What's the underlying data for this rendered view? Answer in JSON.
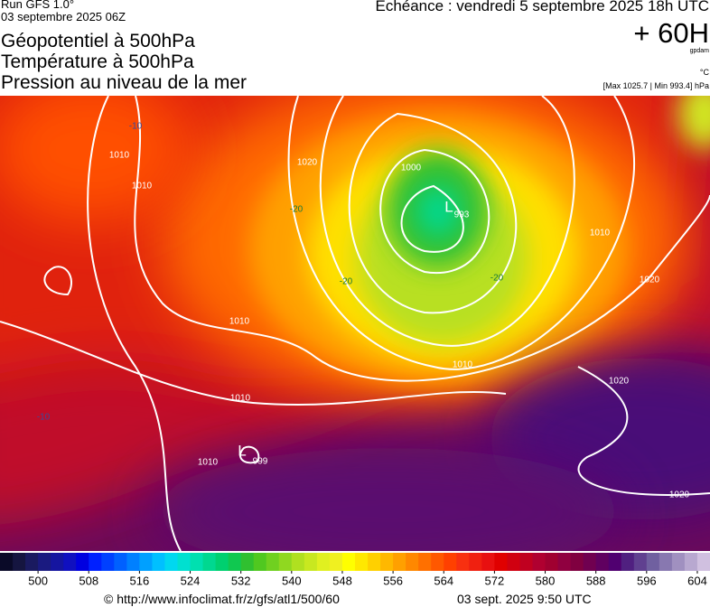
{
  "header": {
    "run": "Run GFS 1.0°",
    "run_date": "03 septembre 2025 06Z",
    "titles": [
      "Géopotentiel à 500hPa",
      "Température à 500hPa",
      "Pression au niveau de la mer"
    ],
    "valid": "Echéance : vendredi 5 septembre 2025 18h UTC",
    "lead": "+ 60H",
    "unit_geo": "gpdam",
    "unit_temp": "°C",
    "pressure_range": "[Max 1025.7 | Min 993.4] hPa"
  },
  "map": {
    "contour_labels": [
      "1010",
      "1010",
      "1020",
      "1000",
      "993",
      "L",
      "1010",
      "1020",
      "1010",
      "1010",
      "1010",
      "1020",
      "999",
      "L",
      "1010",
      "1020",
      "-20",
      "-20",
      "-20",
      "-10",
      "-10"
    ]
  },
  "colorbar": {
    "xlim": [
      494,
      606
    ],
    "colors": [
      "#0a0a28",
      "#151540",
      "#1a1a60",
      "#1a1a80",
      "#1515a0",
      "#1010c0",
      "#0000e0",
      "#0020ff",
      "#0040ff",
      "#0060ff",
      "#0080ff",
      "#00a0ff",
      "#00c0ff",
      "#00d8f0",
      "#00e0d0",
      "#00e0b0",
      "#00d890",
      "#00d070",
      "#10c850",
      "#30c030",
      "#50c820",
      "#70d020",
      "#90d820",
      "#b0e020",
      "#c8e820",
      "#e0f020",
      "#f0f020",
      "#ffff00",
      "#ffe800",
      "#ffd000",
      "#ffb800",
      "#ffa000",
      "#ff8800",
      "#ff7000",
      "#ff5800",
      "#ff4000",
      "#f83010",
      "#f02010",
      "#e81010",
      "#e00000",
      "#d00010",
      "#c00020",
      "#b00030",
      "#a00030",
      "#900040",
      "#800040",
      "#700050",
      "#600060",
      "#500070",
      "#502080",
      "#604090",
      "#7060a0",
      "#8878b0",
      "#a090c0",
      "#b8a8d0",
      "#d0c0e0"
    ],
    "ticks": [
      500,
      508,
      516,
      524,
      532,
      540,
      548,
      556,
      564,
      572,
      580,
      588,
      596,
      604
    ]
  },
  "footer": {
    "source": "© http://www.infoclimat.fr/z/gfs/atl1/500/60",
    "timestamp": "03 sept. 2025  9:50 UTC"
  }
}
